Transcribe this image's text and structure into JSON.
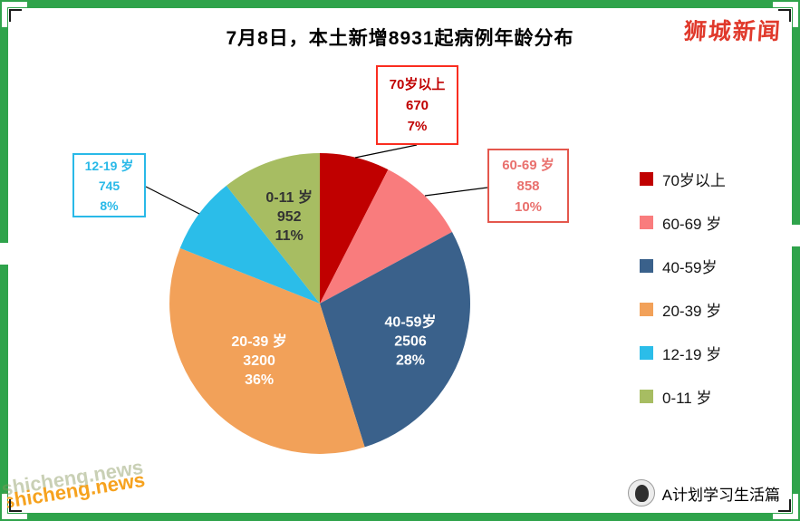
{
  "frame": {
    "border_color": "#2FA34B"
  },
  "header": {
    "title": "7月8日，本土新增8931起病例年龄分布",
    "brand": "狮城新闻"
  },
  "chart_data": {
    "type": "pie",
    "title": "7月8日，本土新增8931起病例年龄分布",
    "total": 8931,
    "start_angle_deg": 0,
    "direction": "clockwise",
    "legend_position": "right",
    "slices": [
      {
        "label": "70岁以上",
        "value": 670,
        "percent": "7%",
        "color": "#C00000",
        "display": "callout",
        "callout_border": "#FA2D20",
        "callout_text": "#C00000"
      },
      {
        "label": "60-69 岁",
        "value": 858,
        "percent": "10%",
        "color": "#F97C7D",
        "display": "callout",
        "callout_border": "#E4574D",
        "callout_text": "#E9706D"
      },
      {
        "label": "40-59岁",
        "value": 2506,
        "percent": "28%",
        "color": "#3A618B",
        "display": "inside",
        "inside_text": "#FFFFFF"
      },
      {
        "label": "20-39 岁",
        "value": 3200,
        "percent": "36%",
        "color": "#F2A159",
        "display": "inside",
        "inside_text": "#FFFFFF"
      },
      {
        "label": "12-19 岁",
        "value": 745,
        "percent": "8%",
        "color": "#2BBDE9",
        "display": "callout",
        "callout_border": "#29B9E8",
        "callout_text": "#29B9E8"
      },
      {
        "label": "0-11 岁",
        "value": 952,
        "percent": "11%",
        "color": "#A7BD62",
        "display": "inside",
        "inside_text": "#333333"
      }
    ]
  },
  "watermark": {
    "text": "shicheng.news",
    "color": "#F6A21E"
  },
  "footer": {
    "brand": "A计划学习生活篇"
  }
}
